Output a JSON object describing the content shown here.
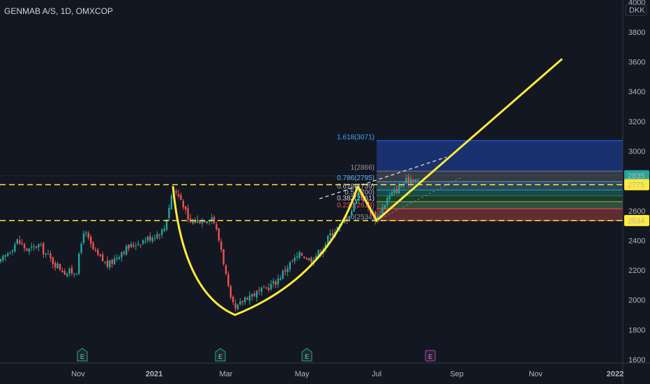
{
  "header": {
    "symbol_title": "GENMAB A/S, 1D, OMXCOP"
  },
  "chart_data": {
    "type": "candlestick",
    "currency": "DKK",
    "ylim": [
      1580,
      4020
    ],
    "y_ticks": [
      1600,
      1800,
      2000,
      2200,
      2400,
      2600,
      2800,
      3000,
      3200,
      3400,
      3600,
      3800
    ],
    "y_top_partial": "4000",
    "x_ticks": [
      "Nov",
      "2021",
      "Mar",
      "May",
      "Jul",
      "Sep",
      "Nov",
      "2022"
    ],
    "price_labels": [
      {
        "value": 2835,
        "text": "2835",
        "color": "#26a69a"
      },
      {
        "value": 2775,
        "text": "2775",
        "color": "#ffeb3b"
      },
      {
        "value": 2534,
        "text": "2534",
        "color": "#ffeb3b"
      }
    ],
    "horizontal_lines": [
      {
        "value": 2775,
        "color": "#ffeb3b",
        "style": "dashed"
      },
      {
        "value": 2534,
        "color": "#ffeb3b",
        "style": "dashed"
      }
    ],
    "fibonacci": {
      "levels": [
        {
          "label": "1.618(3071)",
          "value": 3071,
          "fill": "#2962ff",
          "text_color": "#42a5f5"
        },
        {
          "label": "1(2866)",
          "value": 2866,
          "fill": "#787b86",
          "text_color": "#9598a1"
        },
        {
          "label": "0.786(2795)",
          "value": 2795,
          "fill": "#5c9dc7",
          "text_color": "#64b5f6"
        },
        {
          "label": "0.618(2739)",
          "value": 2739,
          "fill": "#26a69a",
          "text_color": "#b2b5be"
        },
        {
          "label": "0.5(2700)",
          "value": 2700,
          "fill": "#2e7d32",
          "text_color": "#b2b5be"
        },
        {
          "label": "0.382(2661)",
          "value": 2661,
          "fill": "#66bb6a",
          "text_color": "#d1d4dc"
        },
        {
          "label": "0.236(2613)",
          "value": 2613,
          "fill": "#ef5350",
          "text_color": "#ef5350"
        },
        {
          "label": "0(2534)",
          "value": 2534,
          "fill": "#ef5350",
          "text_color": "#9598a1"
        }
      ]
    },
    "earnings_markers": [
      {
        "label": "E",
        "style": "green"
      },
      {
        "label": "E",
        "style": "green"
      },
      {
        "label": "E",
        "style": "green"
      },
      {
        "label": "E",
        "style": "purple"
      }
    ],
    "colors": {
      "up": "#26a69a",
      "down": "#ef5350",
      "drawing": "#ffeb3b",
      "background": "#131722"
    }
  }
}
